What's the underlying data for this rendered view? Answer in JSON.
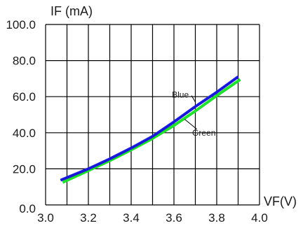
{
  "chart_data": {
    "type": "line",
    "ylabel": "IF (mA)",
    "xlabel": "VF(V)",
    "xlim": [
      3.0,
      4.0
    ],
    "ylim": [
      0,
      100
    ],
    "x_ticks": [
      "3.0",
      "3.2",
      "3.4",
      "3.6",
      "3.8",
      "4.0"
    ],
    "y_ticks": [
      "0.0",
      "20.0",
      "40.0",
      "60.0",
      "80.0",
      "100.0"
    ],
    "grid": true,
    "series": [
      {
        "name": "Blue",
        "color": "#1a1ad6",
        "x": [
          3.07,
          3.2,
          3.3,
          3.4,
          3.5,
          3.6,
          3.7,
          3.8,
          3.9
        ],
        "y": [
          13.7,
          20.0,
          25.5,
          31.5,
          38.0,
          46.0,
          54.5,
          62.5,
          71.0
        ]
      },
      {
        "name": "Green",
        "color": "#22e030",
        "x": [
          3.08,
          3.2,
          3.3,
          3.4,
          3.5,
          3.6,
          3.7,
          3.8,
          3.91
        ],
        "y": [
          12.5,
          19.0,
          24.5,
          30.5,
          36.8,
          44.0,
          52.0,
          60.5,
          69.5
        ]
      }
    ],
    "annotations": [
      {
        "text": "Blue",
        "x": 3.63,
        "y": 61,
        "target_x": 3.7,
        "target_y": 57
      },
      {
        "text": "Green",
        "x": 3.74,
        "y": 40,
        "target_x": 3.65,
        "target_y": 47.5
      }
    ]
  }
}
